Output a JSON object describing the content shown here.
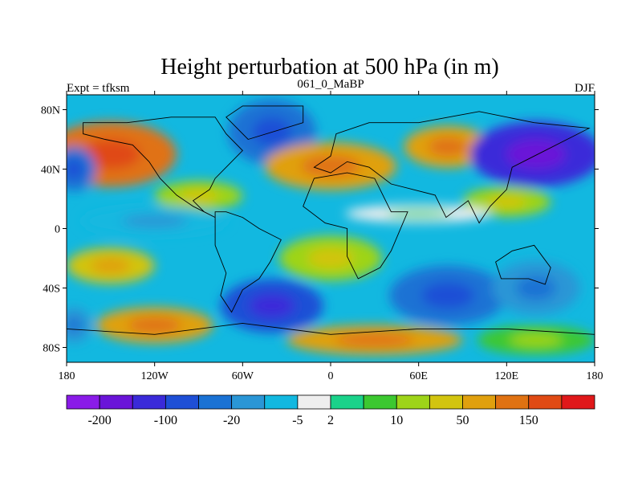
{
  "chart_data": {
    "type": "heatmap",
    "title": "Height perturbation at 500 hPa (in m)",
    "subtitle_left": "Expt = tfksm",
    "subtitle_center": "061_0_MaBP",
    "subtitle_right": "DJF",
    "xlim": [
      -180,
      180
    ],
    "ylim": [
      -90,
      90
    ],
    "x_ticks": [
      {
        "value": -180,
        "label": "180"
      },
      {
        "value": -120,
        "label": "120W"
      },
      {
        "value": -60,
        "label": "60W"
      },
      {
        "value": 0,
        "label": "0"
      },
      {
        "value": 60,
        "label": "60E"
      },
      {
        "value": 120,
        "label": "120E"
      },
      {
        "value": 180,
        "label": "180"
      }
    ],
    "y_ticks": [
      {
        "value": 80,
        "label": "80N"
      },
      {
        "value": 40,
        "label": "40N"
      },
      {
        "value": 0,
        "label": "0"
      },
      {
        "value": -40,
        "label": "40S"
      },
      {
        "value": -80,
        "label": "80S"
      }
    ],
    "colorbar": {
      "colors": [
        "#8a1be8",
        "#6a14d8",
        "#3a2ad9",
        "#1e4fd6",
        "#1a72d4",
        "#2a96d6",
        "#12b8e0",
        "#eeeeee",
        "#1ad28a",
        "#3cc830",
        "#9ed419",
        "#d2c40f",
        "#e0a00e",
        "#e07212",
        "#e04a14",
        "#e0181a"
      ],
      "labels": [
        {
          "boundary": 1,
          "label": "-200"
        },
        {
          "boundary": 3,
          "label": "-100"
        },
        {
          "boundary": 5,
          "label": "-20"
        },
        {
          "boundary": 7,
          "label": "-5"
        },
        {
          "boundary": 8,
          "label": "2"
        },
        {
          "boundary": 10,
          "label": "10"
        },
        {
          "boundary": 12,
          "label": "50"
        },
        {
          "boundary": 14,
          "label": "150"
        }
      ]
    },
    "anomaly_centers": [
      {
        "lon": -150,
        "lat": 50,
        "level": 13,
        "rlon": 45,
        "rlat": 22
      },
      {
        "lon": -90,
        "lat": 22,
        "level": 10,
        "rlon": 30,
        "rlat": 10
      },
      {
        "lon": -40,
        "lat": 65,
        "level": 4,
        "rlon": 30,
        "rlat": 22
      },
      {
        "lon": 0,
        "lat": 42,
        "level": 12,
        "rlon": 45,
        "rlat": 16
      },
      {
        "lon": 80,
        "lat": 55,
        "level": 12,
        "rlon": 30,
        "rlat": 14
      },
      {
        "lon": 140,
        "lat": 50,
        "level": 2,
        "rlon": 45,
        "rlat": 22
      },
      {
        "lon": -175,
        "lat": 40,
        "level": 4,
        "rlon": 15,
        "rlat": 15
      },
      {
        "lon": 120,
        "lat": 18,
        "level": 10,
        "rlon": 30,
        "rlat": 10
      },
      {
        "lon": 60,
        "lat": 10,
        "level": 7,
        "rlon": 50,
        "rlat": 6
      },
      {
        "lon": -120,
        "lat": 5,
        "level": 6,
        "rlon": 50,
        "rlat": 10
      },
      {
        "lon": -40,
        "lat": -52,
        "level": 3,
        "rlon": 35,
        "rlat": 18
      },
      {
        "lon": 80,
        "lat": -45,
        "level": 4,
        "rlon": 40,
        "rlat": 20
      },
      {
        "lon": 140,
        "lat": -40,
        "level": 5,
        "rlon": 30,
        "rlat": 18
      },
      {
        "lon": -150,
        "lat": -25,
        "level": 11,
        "rlon": 30,
        "rlat": 12
      },
      {
        "lon": -120,
        "lat": -65,
        "level": 12,
        "rlon": 40,
        "rlat": 12
      },
      {
        "lon": 0,
        "lat": -20,
        "level": 10,
        "rlon": 35,
        "rlat": 15
      },
      {
        "lon": 30,
        "lat": -75,
        "level": 12,
        "rlon": 60,
        "rlat": 10
      },
      {
        "lon": 140,
        "lat": -75,
        "level": 9,
        "rlon": 40,
        "rlat": 10
      },
      {
        "lon": -175,
        "lat": -65,
        "level": 5,
        "rlon": 12,
        "rlat": 12
      }
    ]
  }
}
